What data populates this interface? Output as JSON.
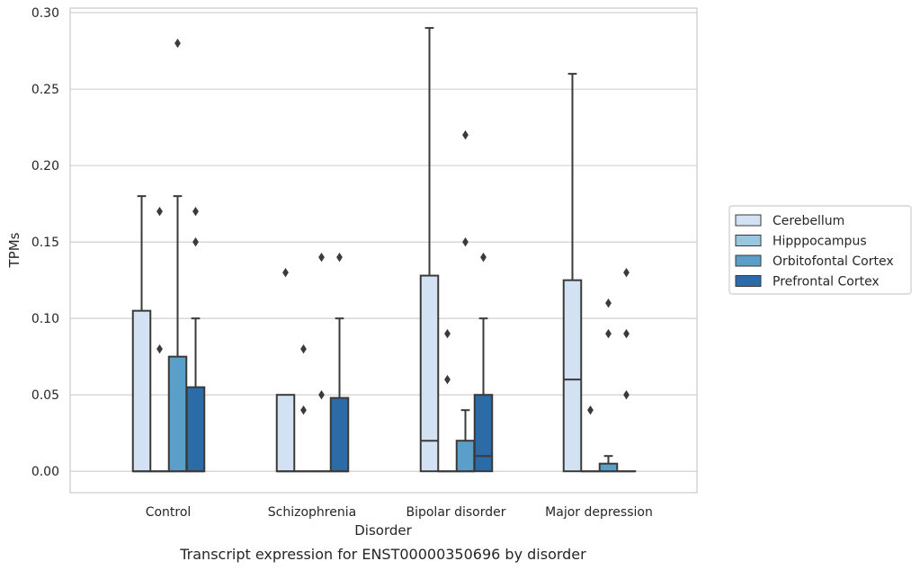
{
  "caption": "Transcript expression for ENST00000350696 by disorder",
  "chart_data": {
    "type": "box",
    "xlabel": "Disorder",
    "ylabel": "TPMs",
    "ylim": [
      -0.014,
      0.303
    ],
    "yticks": [
      0.0,
      0.05,
      0.1,
      0.15,
      0.2,
      0.25,
      0.3
    ],
    "ytick_labels": [
      "0.00",
      "0.05",
      "0.10",
      "0.15",
      "0.20",
      "0.25",
      "0.30"
    ],
    "grid": "horizontal",
    "legend_position": "right",
    "categories": [
      "Control",
      "Schizophrenia",
      "Bipolar disorder",
      "Major depression"
    ],
    "series": [
      {
        "name": "Cerebellum",
        "color": "#d2e2f2",
        "boxes": [
          {
            "category": "Control",
            "whisker_low": 0.0,
            "q1": 0.0,
            "median": 0.0,
            "q3": 0.105,
            "whisker_high": 0.18,
            "outliers": []
          },
          {
            "category": "Schizophrenia",
            "whisker_low": 0.0,
            "q1": 0.0,
            "median": 0.0,
            "q3": 0.05,
            "whisker_high": 0.05,
            "outliers": [
              0.13
            ]
          },
          {
            "category": "Bipolar disorder",
            "whisker_low": 0.0,
            "q1": 0.0,
            "median": 0.02,
            "q3": 0.128,
            "whisker_high": 0.29,
            "outliers": []
          },
          {
            "category": "Major depression",
            "whisker_low": 0.0,
            "q1": 0.0,
            "median": 0.06,
            "q3": 0.125,
            "whisker_high": 0.26,
            "outliers": []
          }
        ]
      },
      {
        "name": "Hipppocampus",
        "color": "#9ac7e0",
        "boxes": [
          {
            "category": "Control",
            "whisker_low": 0.0,
            "q1": 0.0,
            "median": 0.0,
            "q3": 0.0,
            "whisker_high": 0.0,
            "outliers": [
              0.08,
              0.17
            ]
          },
          {
            "category": "Schizophrenia",
            "whisker_low": 0.0,
            "q1": 0.0,
            "median": 0.0,
            "q3": 0.0,
            "whisker_high": 0.0,
            "outliers": [
              0.04,
              0.08
            ]
          },
          {
            "category": "Bipolar disorder",
            "whisker_low": 0.0,
            "q1": 0.0,
            "median": 0.0,
            "q3": 0.0,
            "whisker_high": 0.0,
            "outliers": [
              0.06,
              0.09
            ]
          },
          {
            "category": "Major depression",
            "whisker_low": 0.0,
            "q1": 0.0,
            "median": 0.0,
            "q3": 0.0,
            "whisker_high": 0.0,
            "outliers": [
              0.04
            ]
          }
        ]
      },
      {
        "name": "Orbitofontal Cortex",
        "color": "#5a9fc9",
        "boxes": [
          {
            "category": "Control",
            "whisker_low": 0.0,
            "q1": 0.0,
            "median": 0.0,
            "q3": 0.075,
            "whisker_high": 0.18,
            "outliers": [
              0.28
            ]
          },
          {
            "category": "Schizophrenia",
            "whisker_low": 0.0,
            "q1": 0.0,
            "median": 0.0,
            "q3": 0.0,
            "whisker_high": 0.0,
            "outliers": [
              0.05,
              0.14
            ]
          },
          {
            "category": "Bipolar disorder",
            "whisker_low": 0.0,
            "q1": 0.0,
            "median": 0.0,
            "q3": 0.02,
            "whisker_high": 0.04,
            "outliers": [
              0.15,
              0.22
            ]
          },
          {
            "category": "Major depression",
            "whisker_low": 0.0,
            "q1": 0.0,
            "median": 0.0,
            "q3": 0.005,
            "whisker_high": 0.01,
            "outliers": [
              0.09,
              0.11
            ]
          }
        ]
      },
      {
        "name": "Prefrontal Cortex",
        "color": "#2b6ba8",
        "boxes": [
          {
            "category": "Control",
            "whisker_low": 0.0,
            "q1": 0.0,
            "median": 0.0,
            "q3": 0.055,
            "whisker_high": 0.1,
            "outliers": [
              0.15,
              0.17
            ]
          },
          {
            "category": "Schizophrenia",
            "whisker_low": 0.0,
            "q1": 0.0,
            "median": 0.0,
            "q3": 0.048,
            "whisker_high": 0.1,
            "outliers": [
              0.14
            ]
          },
          {
            "category": "Bipolar disorder",
            "whisker_low": 0.0,
            "q1": 0.0,
            "median": 0.01,
            "q3": 0.05,
            "whisker_high": 0.1,
            "outliers": [
              0.14
            ]
          },
          {
            "category": "Major depression",
            "whisker_low": 0.0,
            "q1": 0.0,
            "median": 0.0,
            "q3": 0.0,
            "whisker_high": 0.0,
            "outliers": [
              0.05,
              0.09,
              0.13
            ]
          }
        ]
      }
    ]
  }
}
